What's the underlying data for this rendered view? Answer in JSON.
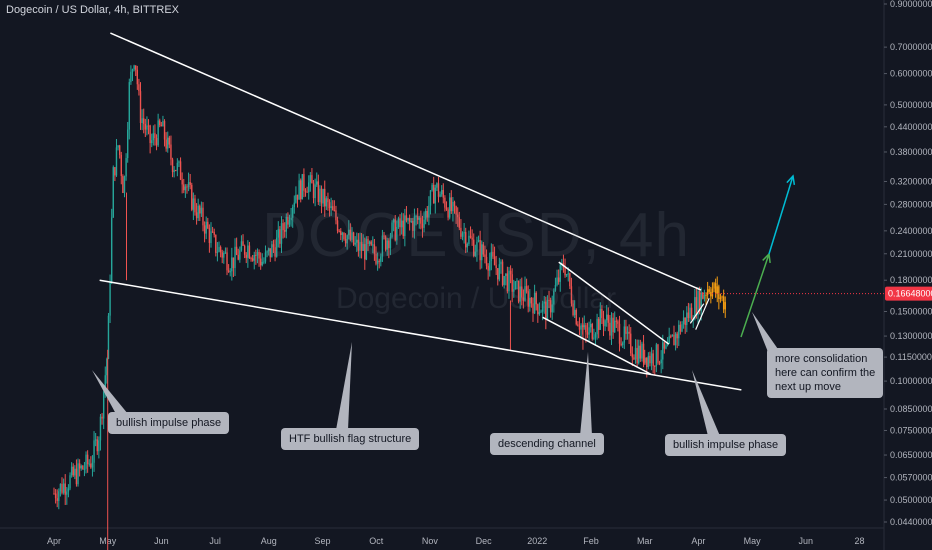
{
  "header": {
    "title": "Dogecoin / US Dollar, 4h, BITTREX"
  },
  "watermark": {
    "line1": "DOGEUSD, 4h",
    "line2": "Dogecoin / US Dollar"
  },
  "chart_data": {
    "type": "candlestick",
    "title": "Dogecoin / US Dollar, 4h, BITTREX",
    "y_scale": "log",
    "y_ticks": [
      {
        "label": "0.90000000",
        "value": 0.9
      },
      {
        "label": "0.70000000",
        "value": 0.7
      },
      {
        "label": "0.60000000",
        "value": 0.6
      },
      {
        "label": "0.50000000",
        "value": 0.5
      },
      {
        "label": "0.44000000",
        "value": 0.44
      },
      {
        "label": "0.38000000",
        "value": 0.38
      },
      {
        "label": "0.32000000",
        "value": 0.32
      },
      {
        "label": "0.28000000",
        "value": 0.28
      },
      {
        "label": "0.24000000",
        "value": 0.24
      },
      {
        "label": "0.21000000",
        "value": 0.21
      },
      {
        "label": "0.18000000",
        "value": 0.18
      },
      {
        "label": "0.15000000",
        "value": 0.15
      },
      {
        "label": "0.13000000",
        "value": 0.13
      },
      {
        "label": "0.11500000",
        "value": 0.115
      },
      {
        "label": "0.10000000",
        "value": 0.1
      },
      {
        "label": "0.08500000",
        "value": 0.085
      },
      {
        "label": "0.07500000",
        "value": 0.075
      },
      {
        "label": "0.06500000",
        "value": 0.065
      },
      {
        "label": "0.05700000",
        "value": 0.057
      },
      {
        "label": "0.05000000",
        "value": 0.05
      },
      {
        "label": "0.04400000",
        "value": 0.044
      }
    ],
    "ylim": [
      0.042,
      0.95
    ],
    "x_ticks": [
      "Apr",
      "May",
      "Jun",
      "Jul",
      "Aug",
      "Sep",
      "Oct",
      "Nov",
      "Dec",
      "2022",
      "Feb",
      "Mar",
      "Apr",
      "May",
      "Jun",
      "28"
    ],
    "current_price": {
      "label": "0.16648000",
      "value": 0.16648
    },
    "price_path": [
      {
        "x": 0.0,
        "y": 0.052
      },
      {
        "x": 0.4,
        "y": 0.058
      },
      {
        "x": 0.7,
        "y": 0.063
      },
      {
        "x": 0.85,
        "y": 0.075
      },
      {
        "x": 1.0,
        "y": 0.12
      },
      {
        "x": 1.1,
        "y": 0.33
      },
      {
        "x": 1.2,
        "y": 0.4
      },
      {
        "x": 1.3,
        "y": 0.3
      },
      {
        "x": 1.4,
        "y": 0.55
      },
      {
        "x": 1.5,
        "y": 0.68
      },
      {
        "x": 1.6,
        "y": 0.48
      },
      {
        "x": 1.8,
        "y": 0.4
      },
      {
        "x": 2.0,
        "y": 0.44
      },
      {
        "x": 2.2,
        "y": 0.36
      },
      {
        "x": 2.4,
        "y": 0.33
      },
      {
        "x": 2.6,
        "y": 0.28
      },
      {
        "x": 2.8,
        "y": 0.25
      },
      {
        "x": 3.0,
        "y": 0.22
      },
      {
        "x": 3.3,
        "y": 0.2
      },
      {
        "x": 3.6,
        "y": 0.22
      },
      {
        "x": 3.9,
        "y": 0.2
      },
      {
        "x": 4.2,
        "y": 0.23
      },
      {
        "x": 4.5,
        "y": 0.3
      },
      {
        "x": 4.7,
        "y": 0.32
      },
      {
        "x": 5.0,
        "y": 0.29
      },
      {
        "x": 5.3,
        "y": 0.25
      },
      {
        "x": 5.6,
        "y": 0.22
      },
      {
        "x": 6.0,
        "y": 0.21
      },
      {
        "x": 6.3,
        "y": 0.24
      },
      {
        "x": 6.6,
        "y": 0.25
      },
      {
        "x": 6.9,
        "y": 0.26
      },
      {
        "x": 7.1,
        "y": 0.31
      },
      {
        "x": 7.4,
        "y": 0.27
      },
      {
        "x": 7.7,
        "y": 0.23
      },
      {
        "x": 8.0,
        "y": 0.21
      },
      {
        "x": 8.3,
        "y": 0.19
      },
      {
        "x": 8.6,
        "y": 0.17
      },
      {
        "x": 8.9,
        "y": 0.16
      },
      {
        "x": 9.2,
        "y": 0.15
      },
      {
        "x": 9.5,
        "y": 0.2
      },
      {
        "x": 9.7,
        "y": 0.15
      },
      {
        "x": 9.9,
        "y": 0.13
      },
      {
        "x": 10.2,
        "y": 0.145
      },
      {
        "x": 10.5,
        "y": 0.135
      },
      {
        "x": 10.8,
        "y": 0.12
      },
      {
        "x": 11.1,
        "y": 0.115
      },
      {
        "x": 11.4,
        "y": 0.118
      },
      {
        "x": 11.7,
        "y": 0.14
      },
      {
        "x": 12.0,
        "y": 0.16
      },
      {
        "x": 12.2,
        "y": 0.175
      },
      {
        "x": 12.5,
        "y": 0.158
      }
    ],
    "annotations": [
      {
        "text": "bullish impulse phase"
      },
      {
        "text": "HTF bullish flag structure"
      },
      {
        "text": "descending channel"
      },
      {
        "text": "bullish impulse phase"
      },
      {
        "text": "more consolidation\nhere can confirm the\nnext up move"
      }
    ]
  },
  "colors": {
    "background": "#131722",
    "bull": "#26a69a",
    "bear": "#ef5350",
    "projection": "#f39c12",
    "trendline": "#ffffff",
    "callout_bg": "#b2b5be",
    "price_tag": "#f23645",
    "arrow_green": "#4caf50",
    "arrow_cyan": "#00bcd4"
  }
}
